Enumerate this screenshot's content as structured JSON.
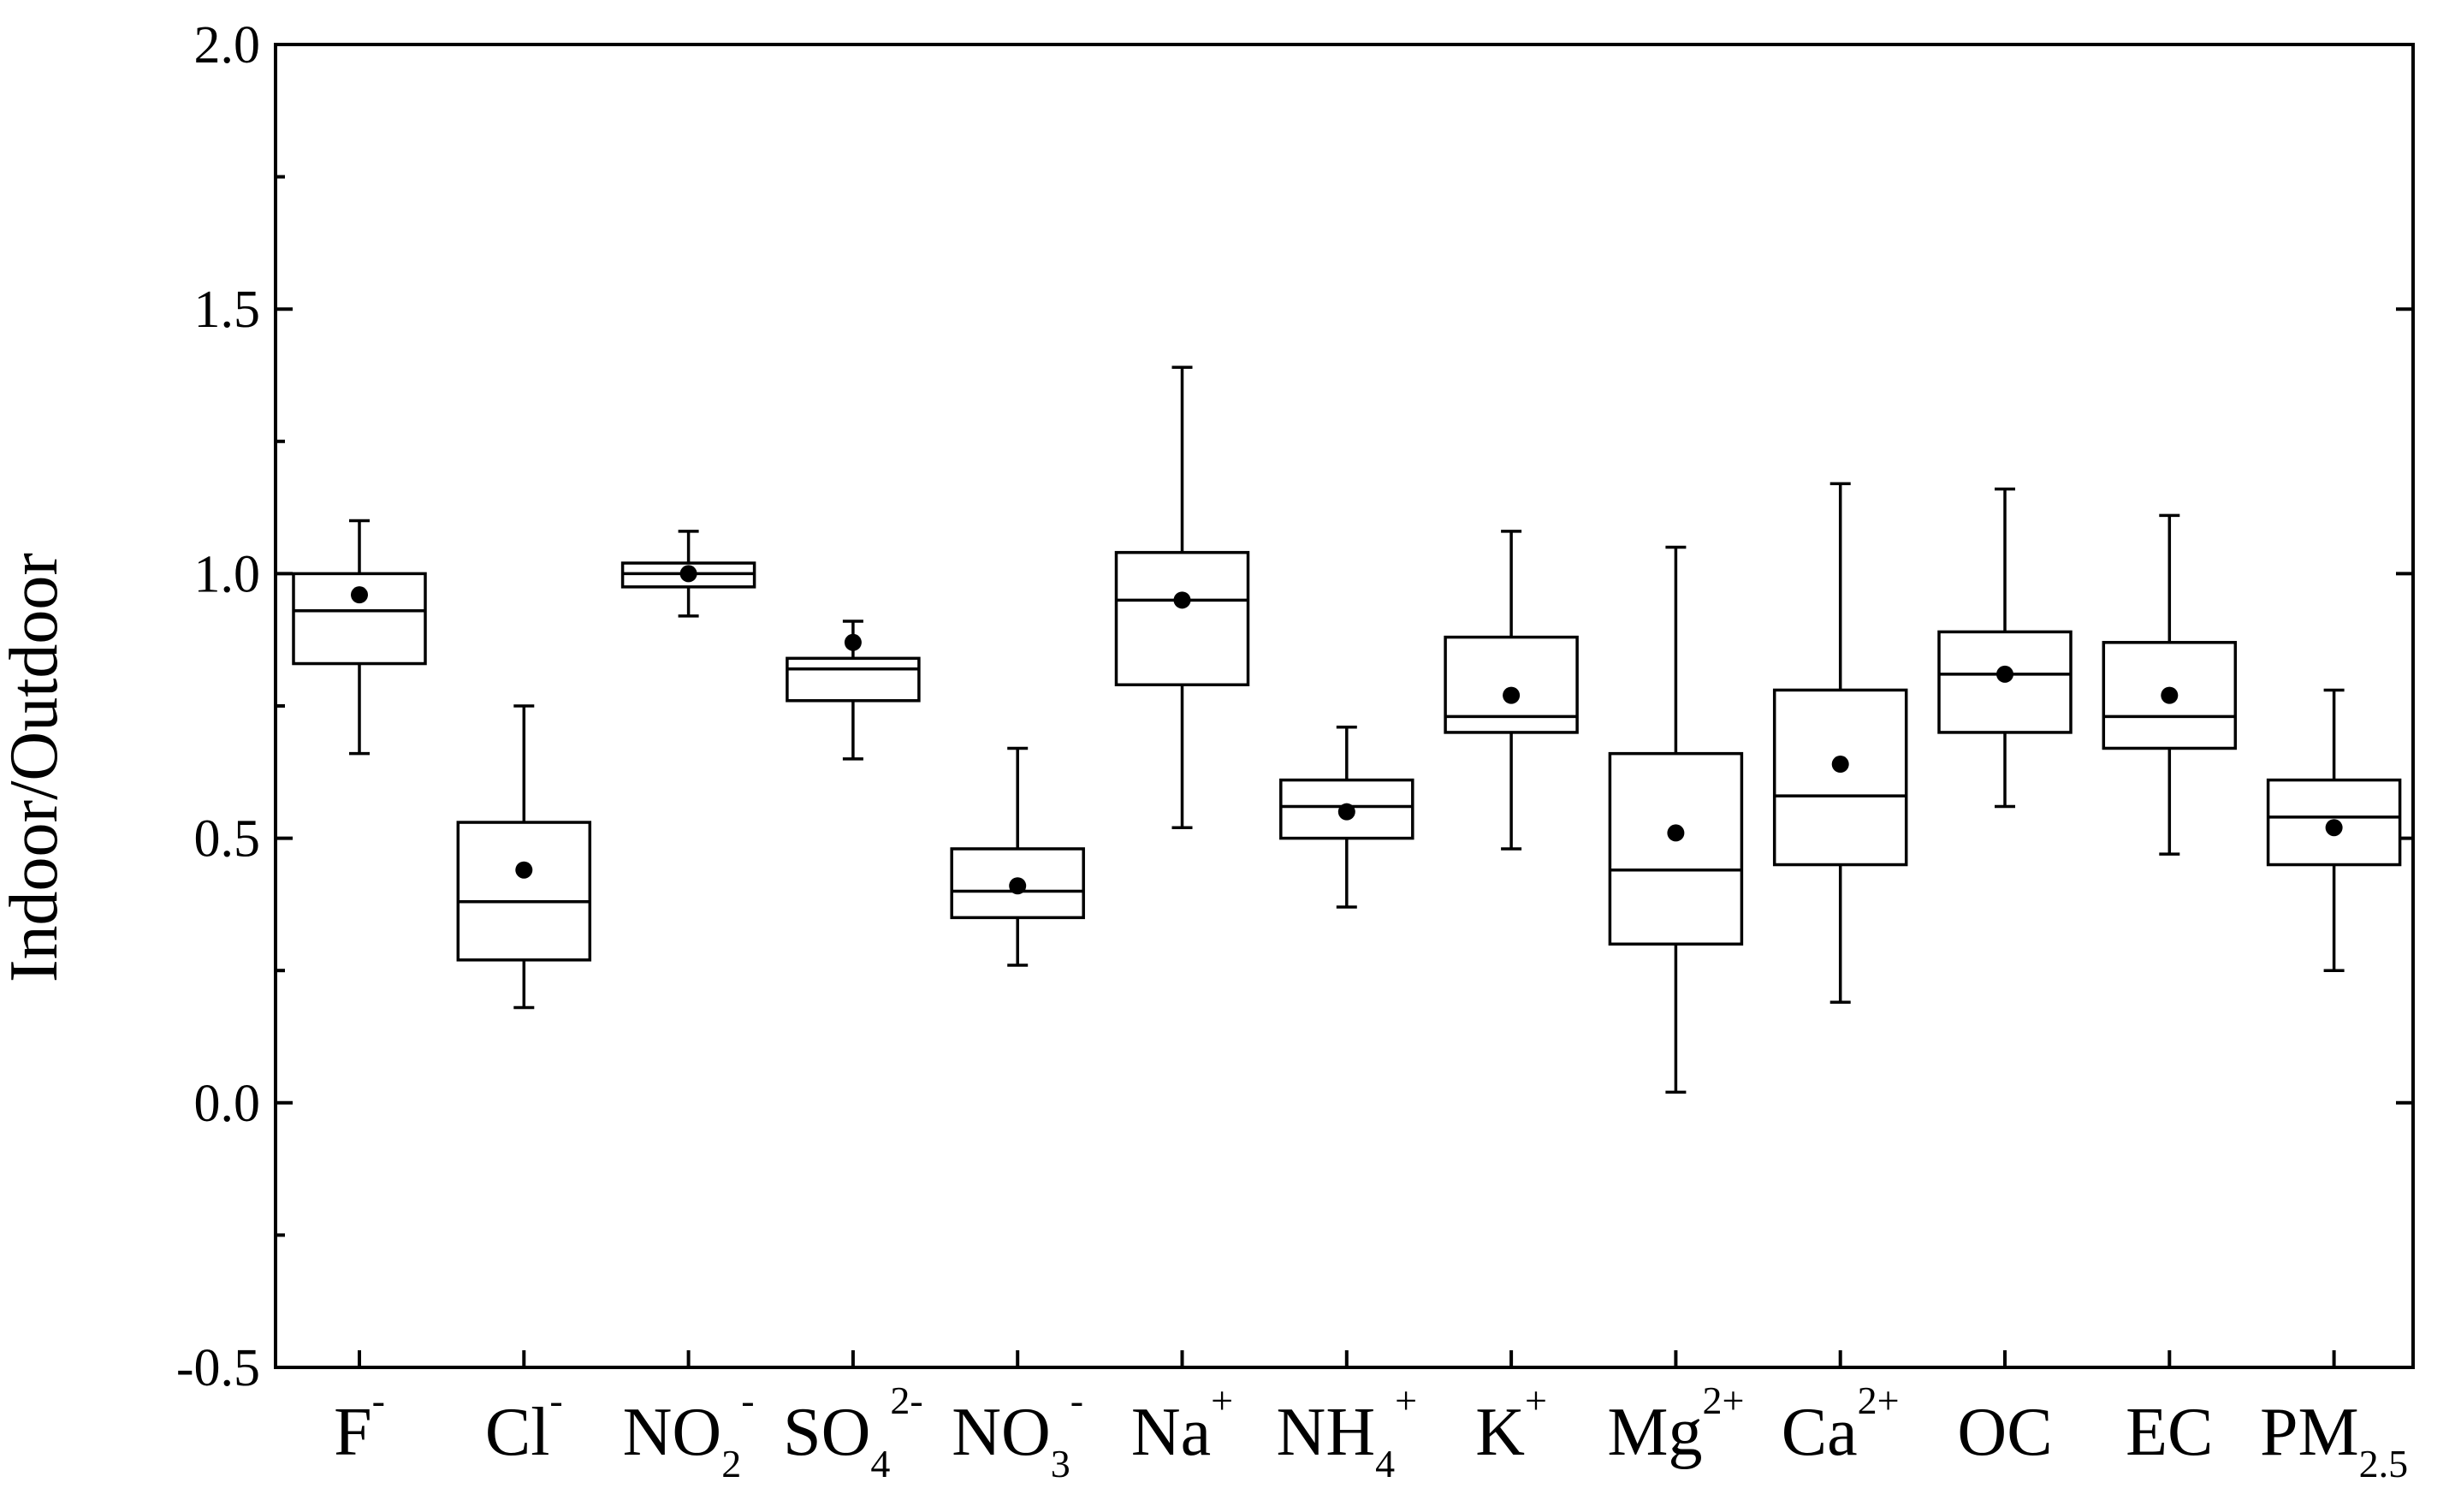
{
  "chart_data": {
    "type": "box",
    "ylabel": "Indoor/Outdoor",
    "xlabel": "",
    "ylim": [
      -0.5,
      2.0
    ],
    "yticks": [
      -0.5,
      0.0,
      0.5,
      1.0,
      1.5,
      2.0
    ],
    "ytick_labels": [
      "-0.5",
      "0.0",
      "0.5",
      "1.0",
      "1.5",
      "2.0"
    ],
    "grid": false,
    "categories": [
      {
        "base": "F",
        "sub": "",
        "sup": "-"
      },
      {
        "base": "Cl",
        "sub": "",
        "sup": "-"
      },
      {
        "base": "NO",
        "sub": "2",
        "sup": "-"
      },
      {
        "base": "SO",
        "sub": "4",
        "sup": "2-"
      },
      {
        "base": "NO",
        "sub": "3",
        "sup": "-"
      },
      {
        "base": "Na",
        "sub": "",
        "sup": "+"
      },
      {
        "base": "NH",
        "sub": "4",
        "sup": "+"
      },
      {
        "base": "K",
        "sub": "",
        "sup": "+"
      },
      {
        "base": "Mg",
        "sub": "",
        "sup": "2+"
      },
      {
        "base": "Ca",
        "sub": "",
        "sup": "2+"
      },
      {
        "base": "OC",
        "sub": "",
        "sup": ""
      },
      {
        "base": "EC",
        "sub": "",
        "sup": ""
      },
      {
        "base": "PM",
        "sub": "2.5",
        "sup": ""
      }
    ],
    "boxes": [
      {
        "whisker_low": 0.66,
        "q1": 0.83,
        "median": 0.93,
        "q3": 1.0,
        "whisker_high": 1.1,
        "mean": 0.96
      },
      {
        "whisker_low": 0.18,
        "q1": 0.27,
        "median": 0.38,
        "q3": 0.53,
        "whisker_high": 0.75,
        "mean": 0.44
      },
      {
        "whisker_low": 0.92,
        "q1": 0.975,
        "median": 1.0,
        "q3": 1.02,
        "whisker_high": 1.08,
        "mean": 1.0
      },
      {
        "whisker_low": 0.65,
        "q1": 0.76,
        "median": 0.82,
        "q3": 0.84,
        "whisker_high": 0.91,
        "mean": 0.87
      },
      {
        "whisker_low": 0.26,
        "q1": 0.35,
        "median": 0.4,
        "q3": 0.48,
        "whisker_high": 0.67,
        "mean": 0.41
      },
      {
        "whisker_low": 0.52,
        "q1": 0.79,
        "median": 0.95,
        "q3": 1.04,
        "whisker_high": 1.39,
        "mean": 0.95
      },
      {
        "whisker_low": 0.37,
        "q1": 0.5,
        "median": 0.56,
        "q3": 0.61,
        "whisker_high": 0.71,
        "mean": 0.55
      },
      {
        "whisker_low": 0.48,
        "q1": 0.7,
        "median": 0.73,
        "q3": 0.88,
        "whisker_high": 1.08,
        "mean": 0.77
      },
      {
        "whisker_low": 0.02,
        "q1": 0.3,
        "median": 0.44,
        "q3": 0.66,
        "whisker_high": 1.05,
        "mean": 0.51
      },
      {
        "whisker_low": 0.19,
        "q1": 0.45,
        "median": 0.58,
        "q3": 0.78,
        "whisker_high": 1.17,
        "mean": 0.64
      },
      {
        "whisker_low": 0.56,
        "q1": 0.7,
        "median": 0.81,
        "q3": 0.89,
        "whisker_high": 1.16,
        "mean": 0.81
      },
      {
        "whisker_low": 0.47,
        "q1": 0.67,
        "median": 0.73,
        "q3": 0.87,
        "whisker_high": 1.11,
        "mean": 0.77
      },
      {
        "whisker_low": 0.25,
        "q1": 0.45,
        "median": 0.54,
        "q3": 0.61,
        "whisker_high": 0.78,
        "mean": 0.52
      }
    ]
  }
}
